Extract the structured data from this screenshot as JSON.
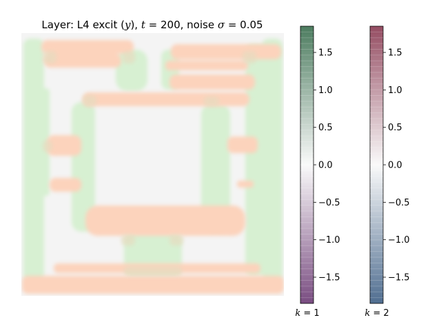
{
  "chart_data": {
    "type": "heatmap",
    "title": {
      "prefix": "Layer: L4 excit (",
      "var": "y",
      "mid1": "), ",
      "t_sym": "t",
      "mid2": " = 200, noise ",
      "sigma_sym": "σ",
      "suffix": " = 0.05"
    },
    "grid": false,
    "axes_visible": false,
    "colorbars": [
      {
        "name": "k = 1",
        "label_k": "k",
        "label_rest": " = 1",
        "colormap": "PRGn",
        "colors": {
          "low": "#40004b",
          "mid": "#f7f7f7",
          "high": "#00441b"
        },
        "range": [
          -1.85,
          1.85
        ],
        "ticks": [
          {
            "value": 1.5,
            "label": "1.5"
          },
          {
            "value": 1.0,
            "label": "1.0"
          },
          {
            "value": 0.5,
            "label": "0.5"
          },
          {
            "value": 0.0,
            "label": "0.0"
          },
          {
            "value": -0.5,
            "label": "−0.5"
          },
          {
            "value": -1.0,
            "label": "−1.0"
          },
          {
            "value": -1.5,
            "label": "−1.5"
          }
        ]
      },
      {
        "name": "k = 2",
        "label_k": "k",
        "label_rest": " = 2",
        "colormap": "RdBu_r",
        "colors": {
          "low": "#053061",
          "mid": "#f7f7f7",
          "high": "#67001f"
        },
        "range": [
          -1.85,
          1.85
        ],
        "ticks": [
          {
            "value": 1.5,
            "label": "1.5"
          },
          {
            "value": 1.0,
            "label": "1.0"
          },
          {
            "value": 0.5,
            "label": "0.5"
          },
          {
            "value": 0.0,
            "label": "0.0"
          },
          {
            "value": -0.5,
            "label": "−0.5"
          },
          {
            "value": -1.0,
            "label": "−1.0"
          },
          {
            "value": -1.5,
            "label": "−1.5"
          }
        ]
      }
    ],
    "heatmap": {
      "background_color": "#f4f4f4",
      "k1_color": "#d7f0d2",
      "k2_color": "#fcd3bc",
      "overlap_color": "#e6dcc0",
      "approx_peak_value": 0.3
    }
  }
}
